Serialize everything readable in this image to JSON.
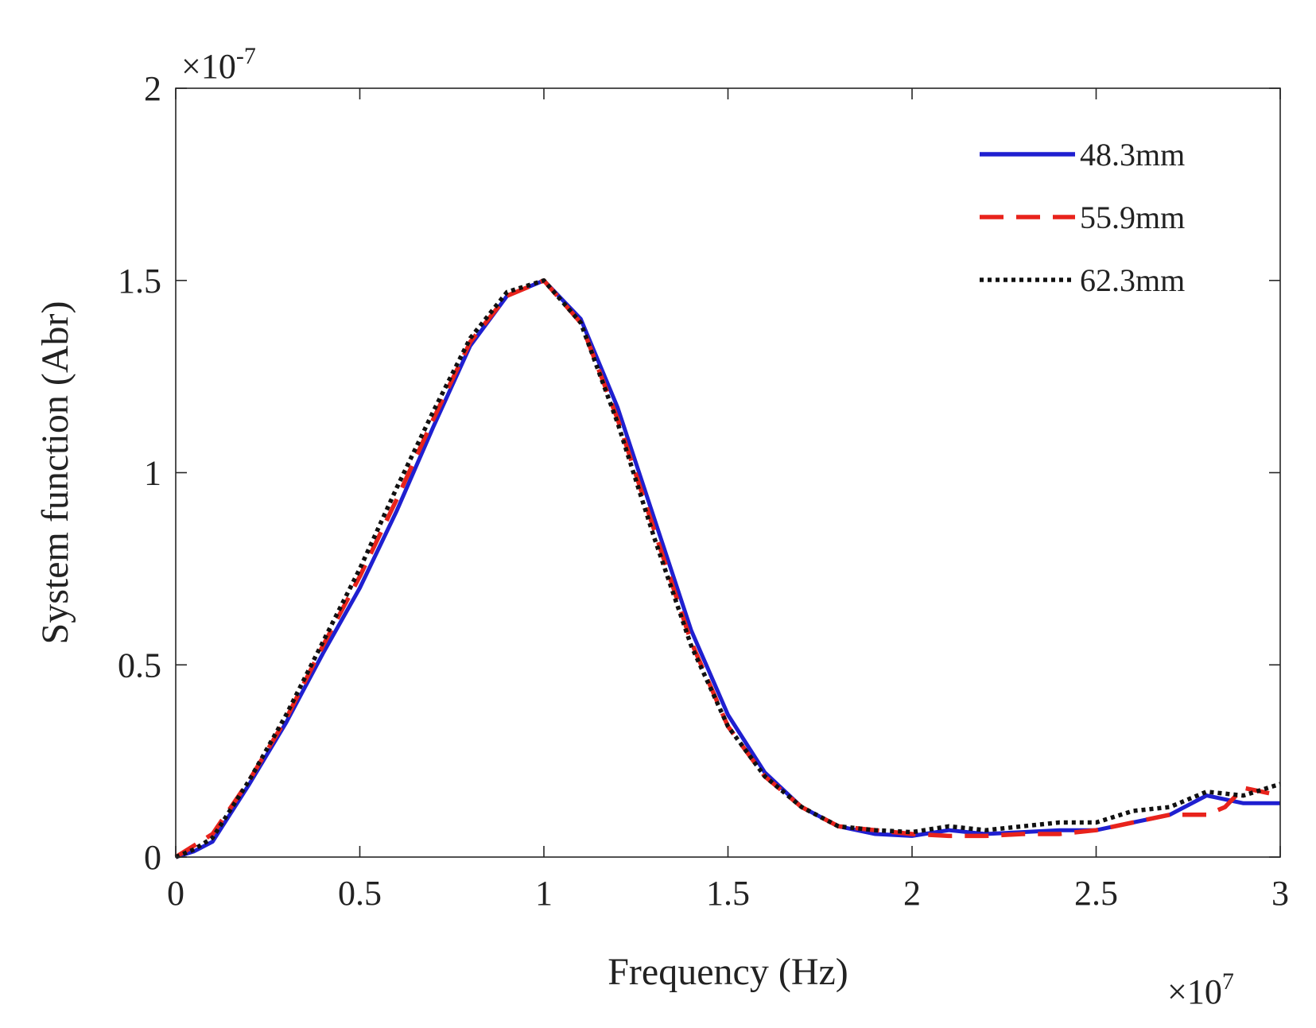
{
  "chart_data": {
    "type": "line",
    "title": "",
    "xlabel": "Frequency (Hz)",
    "ylabel": "System function (Abr)",
    "x_multiplier_label": "×10",
    "x_multiplier_exp": "7",
    "y_multiplier_label": "×10",
    "y_multiplier_exp": "-7",
    "xlim": [
      0,
      3
    ],
    "ylim": [
      0,
      2
    ],
    "xticks": [
      0,
      0.5,
      1,
      1.5,
      2,
      2.5,
      3
    ],
    "xtick_labels": [
      "0",
      "0.5",
      "1",
      "1.5",
      "2",
      "2.5",
      "3"
    ],
    "yticks": [
      0,
      0.5,
      1,
      1.5,
      2
    ],
    "ytick_labels": [
      "0",
      "0.5",
      "1",
      "1.5",
      "2"
    ],
    "grid": false,
    "legend_position": "top-right",
    "series": [
      {
        "name": "48.3mm",
        "color": "#1f1fd0",
        "style": "solid",
        "x": [
          0,
          0.05,
          0.1,
          0.2,
          0.3,
          0.4,
          0.5,
          0.6,
          0.7,
          0.8,
          0.9,
          1.0,
          1.1,
          1.2,
          1.3,
          1.4,
          1.5,
          1.6,
          1.7,
          1.8,
          1.9,
          2.0,
          2.1,
          2.2,
          2.3,
          2.4,
          2.5,
          2.6,
          2.7,
          2.8,
          2.9,
          3.0
        ],
        "y": [
          0,
          0.015,
          0.04,
          0.19,
          0.35,
          0.53,
          0.7,
          0.9,
          1.12,
          1.33,
          1.46,
          1.5,
          1.4,
          1.17,
          0.88,
          0.59,
          0.37,
          0.22,
          0.13,
          0.08,
          0.06,
          0.055,
          0.07,
          0.06,
          0.065,
          0.07,
          0.07,
          0.09,
          0.11,
          0.16,
          0.14,
          0.14
        ]
      },
      {
        "name": "55.9mm",
        "color": "#e8231c",
        "style": "dashed",
        "x": [
          0,
          0.05,
          0.1,
          0.2,
          0.3,
          0.4,
          0.5,
          0.6,
          0.7,
          0.8,
          0.9,
          1.0,
          1.1,
          1.2,
          1.3,
          1.4,
          1.5,
          1.6,
          1.7,
          1.8,
          1.9,
          2.0,
          2.1,
          2.2,
          2.3,
          2.4,
          2.5,
          2.6,
          2.7,
          2.8,
          2.85,
          2.9,
          3.0
        ],
        "y": [
          0,
          0.03,
          0.06,
          0.2,
          0.36,
          0.55,
          0.73,
          0.93,
          1.14,
          1.34,
          1.46,
          1.5,
          1.39,
          1.14,
          0.85,
          0.56,
          0.34,
          0.21,
          0.13,
          0.08,
          0.07,
          0.06,
          0.055,
          0.055,
          0.06,
          0.06,
          0.07,
          0.09,
          0.11,
          0.11,
          0.13,
          0.18,
          0.16
        ]
      },
      {
        "name": "62.3mm",
        "color": "#111111",
        "style": "dotted",
        "x": [
          0,
          0.05,
          0.1,
          0.2,
          0.3,
          0.4,
          0.5,
          0.6,
          0.7,
          0.8,
          0.9,
          1.0,
          1.1,
          1.2,
          1.3,
          1.4,
          1.5,
          1.6,
          1.7,
          1.8,
          1.9,
          2.0,
          2.1,
          2.2,
          2.3,
          2.4,
          2.5,
          2.6,
          2.7,
          2.8,
          2.9,
          3.0
        ],
        "y": [
          0,
          0.02,
          0.05,
          0.2,
          0.37,
          0.56,
          0.75,
          0.96,
          1.16,
          1.35,
          1.47,
          1.5,
          1.39,
          1.13,
          0.83,
          0.55,
          0.34,
          0.21,
          0.13,
          0.08,
          0.07,
          0.065,
          0.08,
          0.07,
          0.08,
          0.09,
          0.09,
          0.12,
          0.13,
          0.17,
          0.16,
          0.19
        ]
      }
    ]
  }
}
